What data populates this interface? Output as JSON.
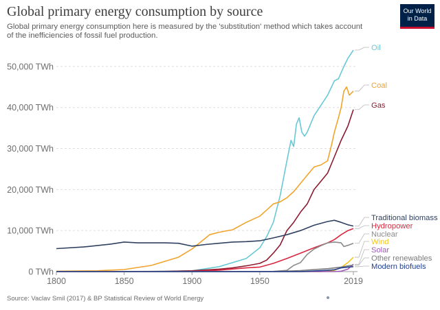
{
  "header": {
    "title": "Global primary energy consumption by source",
    "subtitle": "Global primary energy consumption here is measured by the 'substitution' method which takes account of the inefficiencies of fossil fuel production.",
    "logo_line1": "Our World",
    "logo_line2": "in Data"
  },
  "footer": {
    "source": "Source: Vaclav Smil (2017) & BP Statistical Review of World Energy"
  },
  "chart_data": {
    "type": "line",
    "title": "Global primary energy consumption by source",
    "xlabel": "",
    "ylabel": "",
    "xlim": [
      1800,
      2019
    ],
    "ylim": [
      0,
      55000
    ],
    "grid": "horizontal dashed",
    "legend": "right, inline labels",
    "x_ticks": [
      "1800",
      "1850",
      "1900",
      "1950",
      "2019"
    ],
    "y_ticks": [
      {
        "value": 0,
        "label": "0 TWh"
      },
      {
        "value": 10000,
        "label": "10,000 TWh"
      },
      {
        "value": 20000,
        "label": "20,000 TWh"
      },
      {
        "value": 30000,
        "label": "30,000 TWh"
      },
      {
        "value": 40000,
        "label": "40,000 TWh"
      },
      {
        "value": 50000,
        "label": "50,000 TWh"
      }
    ],
    "series": [
      {
        "name": "Oil",
        "color": "#68c8d6",
        "points": [
          [
            1800,
            0
          ],
          [
            1860,
            0
          ],
          [
            1900,
            200
          ],
          [
            1920,
            1200
          ],
          [
            1940,
            3200
          ],
          [
            1950,
            5800
          ],
          [
            1955,
            8500
          ],
          [
            1960,
            12000
          ],
          [
            1965,
            18500
          ],
          [
            1970,
            27000
          ],
          [
            1973,
            32000
          ],
          [
            1975,
            30500
          ],
          [
            1977,
            36000
          ],
          [
            1979,
            37500
          ],
          [
            1981,
            34000
          ],
          [
            1983,
            33000
          ],
          [
            1985,
            34000
          ],
          [
            1990,
            38000
          ],
          [
            1995,
            40500
          ],
          [
            2000,
            43000
          ],
          [
            2005,
            46500
          ],
          [
            2008,
            47000
          ],
          [
            2010,
            48500
          ],
          [
            2012,
            50000
          ],
          [
            2015,
            52000
          ],
          [
            2019,
            54000
          ]
        ]
      },
      {
        "name": "Coal",
        "color": "#f1a32a",
        "points": [
          [
            1800,
            100
          ],
          [
            1830,
            200
          ],
          [
            1850,
            500
          ],
          [
            1870,
            1500
          ],
          [
            1890,
            3500
          ],
          [
            1900,
            5500
          ],
          [
            1913,
            9000
          ],
          [
            1920,
            9600
          ],
          [
            1930,
            10200
          ],
          [
            1940,
            12000
          ],
          [
            1950,
            13500
          ],
          [
            1955,
            15000
          ],
          [
            1960,
            16500
          ],
          [
            1965,
            17000
          ],
          [
            1970,
            18000
          ],
          [
            1975,
            19500
          ],
          [
            1980,
            21500
          ],
          [
            1985,
            23500
          ],
          [
            1990,
            25500
          ],
          [
            1995,
            26000
          ],
          [
            2000,
            27000
          ],
          [
            2003,
            31000
          ],
          [
            2005,
            34000
          ],
          [
            2008,
            37500
          ],
          [
            2010,
            40000
          ],
          [
            2012,
            44000
          ],
          [
            2014,
            45000
          ],
          [
            2016,
            43000
          ],
          [
            2019,
            44000
          ]
        ]
      },
      {
        "name": "Gas",
        "color": "#8c1a2f",
        "points": [
          [
            1800,
            0
          ],
          [
            1880,
            50
          ],
          [
            1900,
            200
          ],
          [
            1920,
            600
          ],
          [
            1930,
            900
          ],
          [
            1940,
            1400
          ],
          [
            1950,
            2000
          ],
          [
            1955,
            2800
          ],
          [
            1960,
            4500
          ],
          [
            1965,
            6500
          ],
          [
            1970,
            10000
          ],
          [
            1975,
            12000
          ],
          [
            1980,
            14500
          ],
          [
            1985,
            16500
          ],
          [
            1990,
            20000
          ],
          [
            1995,
            22000
          ],
          [
            2000,
            24000
          ],
          [
            2005,
            28000
          ],
          [
            2010,
            32000
          ],
          [
            2015,
            35500
          ],
          [
            2019,
            39500
          ]
        ]
      },
      {
        "name": "Traditional biomass",
        "color": "#2f3f5f",
        "points": [
          [
            1800,
            5600
          ],
          [
            1820,
            6000
          ],
          [
            1840,
            6700
          ],
          [
            1850,
            7200
          ],
          [
            1860,
            7000
          ],
          [
            1880,
            7000
          ],
          [
            1890,
            6900
          ],
          [
            1900,
            6200
          ],
          [
            1910,
            6600
          ],
          [
            1920,
            6900
          ],
          [
            1930,
            7200
          ],
          [
            1940,
            7300
          ],
          [
            1950,
            7500
          ],
          [
            1960,
            8200
          ],
          [
            1970,
            9000
          ],
          [
            1980,
            10000
          ],
          [
            1990,
            11300
          ],
          [
            2000,
            12200
          ],
          [
            2005,
            12500
          ],
          [
            2010,
            12000
          ],
          [
            2015,
            11400
          ],
          [
            2019,
            11100
          ]
        ]
      },
      {
        "name": "Hydropower",
        "color": "#d7263d",
        "points": [
          [
            1800,
            0
          ],
          [
            1890,
            0
          ],
          [
            1900,
            60
          ],
          [
            1920,
            350
          ],
          [
            1940,
            900
          ],
          [
            1950,
            1100
          ],
          [
            1960,
            2000
          ],
          [
            1970,
            3200
          ],
          [
            1980,
            4500
          ],
          [
            1990,
            5800
          ],
          [
            2000,
            7000
          ],
          [
            2005,
            7800
          ],
          [
            2010,
            9000
          ],
          [
            2015,
            10000
          ],
          [
            2019,
            10500
          ]
        ]
      },
      {
        "name": "Nuclear",
        "color": "#8a8a8a",
        "points": [
          [
            1800,
            0
          ],
          [
            1955,
            0
          ],
          [
            1960,
            50
          ],
          [
            1970,
            300
          ],
          [
            1975,
            1500
          ],
          [
            1980,
            2200
          ],
          [
            1985,
            4200
          ],
          [
            1990,
            5500
          ],
          [
            1995,
            6300
          ],
          [
            2000,
            7000
          ],
          [
            2005,
            7200
          ],
          [
            2010,
            7000
          ],
          [
            2012,
            6100
          ],
          [
            2015,
            6400
          ],
          [
            2019,
            6900
          ]
        ]
      },
      {
        "name": "Wind",
        "color": "#f5c518",
        "points": [
          [
            1800,
            0
          ],
          [
            1995,
            0
          ],
          [
            2000,
            80
          ],
          [
            2005,
            300
          ],
          [
            2010,
            1000
          ],
          [
            2015,
            2200
          ],
          [
            2019,
            3500
          ]
        ]
      },
      {
        "name": "Solar",
        "color": "#9b59b6",
        "points": [
          [
            1800,
            0
          ],
          [
            2005,
            0
          ],
          [
            2010,
            100
          ],
          [
            2015,
            600
          ],
          [
            2019,
            1800
          ]
        ]
      },
      {
        "name": "Other renewables",
        "color": "#7a7a7a",
        "points": [
          [
            1800,
            0
          ],
          [
            1965,
            0
          ],
          [
            1970,
            120
          ],
          [
            1980,
            250
          ],
          [
            1990,
            500
          ],
          [
            2000,
            700
          ],
          [
            2010,
            1100
          ],
          [
            2019,
            1600
          ]
        ]
      },
      {
        "name": "Modern biofuels",
        "color": "#23408e",
        "points": [
          [
            1800,
            0
          ],
          [
            1980,
            0
          ],
          [
            1990,
            150
          ],
          [
            2000,
            300
          ],
          [
            2005,
            450
          ],
          [
            2010,
            900
          ],
          [
            2015,
            1100
          ],
          [
            2019,
            1200
          ]
        ]
      }
    ]
  }
}
